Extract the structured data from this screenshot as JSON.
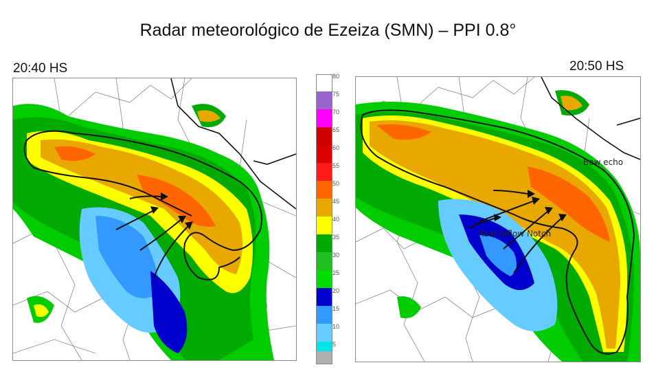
{
  "title": "Radar meteorológico de Ezeiza (SMN) – PPI 0.8°",
  "panels": [
    {
      "time": "20:40 HS"
    },
    {
      "time": "20:50 HS",
      "annotations": {
        "bow_echo": "Bow echo",
        "rear_inflow_notch": "Rear Inflow Notch"
      }
    }
  ],
  "scale": {
    "levels": [
      {
        "label": "80",
        "color": "#ffffff"
      },
      {
        "label": "75",
        "color": "#9966cc"
      },
      {
        "label": "70",
        "color": "#ff00ff"
      },
      {
        "label": "65",
        "color": "#cc0000"
      },
      {
        "label": "60",
        "color": "#dd0000"
      },
      {
        "label": "55",
        "color": "#ff1a1a"
      },
      {
        "label": "50",
        "color": "#ff6600"
      },
      {
        "label": "45",
        "color": "#e8a800"
      },
      {
        "label": "40",
        "color": "#ffff00"
      },
      {
        "label": "35",
        "color": "#00aa00"
      },
      {
        "label": "30",
        "color": "#1fbf1f"
      },
      {
        "label": "25",
        "color": "#00dd00"
      },
      {
        "label": "20",
        "color": "#0000cc"
      },
      {
        "label": "15",
        "color": "#3399ff"
      },
      {
        "label": "10",
        "color": "#66ccff"
      },
      {
        "label": "5",
        "color": "#00e5e5"
      },
      {
        "label": "",
        "color": "#b0b0b0"
      }
    ]
  }
}
